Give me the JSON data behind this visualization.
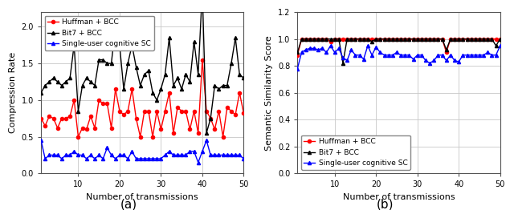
{
  "title_a": "(a)",
  "title_b": "(b)",
  "xlabel": "Number of transmissions",
  "ylabel_a": "Compression Rate",
  "ylabel_b": "Semantic Similarity Score",
  "xlim": [
    1,
    50
  ],
  "ylim_a": [
    0.0,
    2.2
  ],
  "ylim_b": [
    0.0,
    1.2
  ],
  "yticks_a": [
    0.0,
    0.5,
    1.0,
    1.5,
    2.0
  ],
  "yticks_b": [
    0.0,
    0.2,
    0.4,
    0.6,
    0.8,
    1.0,
    1.2
  ],
  "xticks": [
    10,
    20,
    30,
    40,
    50
  ],
  "legend_labels": [
    "Huffman + BCC",
    "Bit7 + BCC",
    "Single-user cognitive SC"
  ],
  "colors": [
    "red",
    "black",
    "blue"
  ],
  "markers": [
    "o",
    "^",
    "^"
  ],
  "markersize": 3,
  "linewidth": 1.0,
  "huffman_compression": [
    0.75,
    0.65,
    0.78,
    0.75,
    0.62,
    0.75,
    0.75,
    0.78,
    1.0,
    0.5,
    0.62,
    0.6,
    0.78,
    0.62,
    1.0,
    0.95,
    0.95,
    0.62,
    1.15,
    0.85,
    0.8,
    0.85,
    1.15,
    0.75,
    0.5,
    0.85,
    0.85,
    0.5,
    0.85,
    0.6,
    0.85,
    1.1,
    0.55,
    0.9,
    0.85,
    0.85,
    0.6,
    0.85,
    0.55,
    1.55,
    0.85,
    0.75,
    0.6,
    0.85,
    0.5,
    0.9,
    0.85,
    0.8,
    1.1,
    0.82
  ],
  "bit7_compression": [
    1.1,
    1.2,
    1.25,
    1.3,
    1.25,
    1.2,
    1.25,
    1.3,
    1.75,
    0.85,
    1.2,
    1.3,
    1.25,
    1.2,
    1.55,
    1.55,
    1.5,
    1.5,
    2.0,
    1.75,
    1.15,
    1.5,
    1.75,
    1.45,
    1.2,
    1.35,
    1.4,
    1.1,
    1.0,
    1.15,
    1.35,
    1.85,
    1.2,
    1.3,
    1.15,
    1.35,
    1.25,
    1.8,
    1.35,
    2.5,
    0.55,
    0.75,
    1.2,
    1.15,
    1.2,
    1.2,
    1.5,
    1.85,
    1.35,
    1.3
  ],
  "single_compression": [
    0.45,
    0.2,
    0.25,
    0.25,
    0.25,
    0.2,
    0.25,
    0.25,
    0.3,
    0.25,
    0.25,
    0.2,
    0.25,
    0.2,
    0.25,
    0.2,
    0.35,
    0.25,
    0.2,
    0.25,
    0.25,
    0.2,
    0.3,
    0.2,
    0.2,
    0.2,
    0.2,
    0.2,
    0.2,
    0.2,
    0.25,
    0.3,
    0.25,
    0.25,
    0.25,
    0.25,
    0.3,
    0.3,
    0.15,
    0.3,
    0.45,
    0.25,
    0.25,
    0.25,
    0.25,
    0.25,
    0.25,
    0.25,
    0.25,
    0.2
  ],
  "huffman_similarity": [
    0.88,
    1.0,
    1.0,
    1.0,
    1.0,
    1.0,
    1.0,
    1.0,
    0.98,
    1.0,
    1.0,
    1.0,
    1.0,
    1.0,
    1.0,
    1.0,
    1.0,
    1.0,
    1.0,
    1.0,
    1.0,
    1.0,
    1.0,
    1.0,
    1.0,
    1.0,
    1.0,
    1.0,
    1.0,
    1.0,
    1.0,
    1.0,
    1.0,
    1.0,
    1.0,
    1.0,
    0.9,
    1.0,
    1.0,
    1.0,
    1.0,
    1.0,
    1.0,
    1.0,
    1.0,
    1.0,
    1.0,
    1.0,
    1.0,
    1.0
  ],
  "bit7_similarity": [
    0.9,
    1.0,
    1.0,
    1.0,
    1.0,
    1.0,
    1.0,
    1.0,
    1.0,
    1.0,
    1.0,
    0.82,
    1.0,
    1.0,
    1.0,
    1.0,
    1.0,
    1.0,
    0.98,
    1.0,
    1.0,
    1.0,
    1.0,
    1.0,
    1.0,
    1.0,
    1.0,
    1.0,
    1.0,
    1.0,
    1.0,
    1.0,
    1.0,
    1.0,
    1.0,
    1.0,
    0.92,
    1.0,
    1.0,
    1.0,
    1.0,
    1.0,
    1.0,
    1.0,
    1.0,
    1.0,
    1.0,
    1.0,
    0.95,
    1.0
  ],
  "single_similarity": [
    0.78,
    0.9,
    0.92,
    0.93,
    0.93,
    0.92,
    0.93,
    0.9,
    0.95,
    0.9,
    0.93,
    0.86,
    0.84,
    0.92,
    0.88,
    0.88,
    0.85,
    0.95,
    0.88,
    0.94,
    0.9,
    0.88,
    0.88,
    0.88,
    0.9,
    0.88,
    0.88,
    0.88,
    0.85,
    0.88,
    0.88,
    0.84,
    0.82,
    0.84,
    0.88,
    0.88,
    0.84,
    0.88,
    0.84,
    0.83,
    0.88,
    0.88,
    0.88,
    0.88,
    0.88,
    0.88,
    0.9,
    0.88,
    0.88,
    0.95
  ],
  "background_color": "#ffffff",
  "grid_color": "#c8c8c8",
  "figsize": [
    6.4,
    2.62
  ],
  "dpi": 100
}
